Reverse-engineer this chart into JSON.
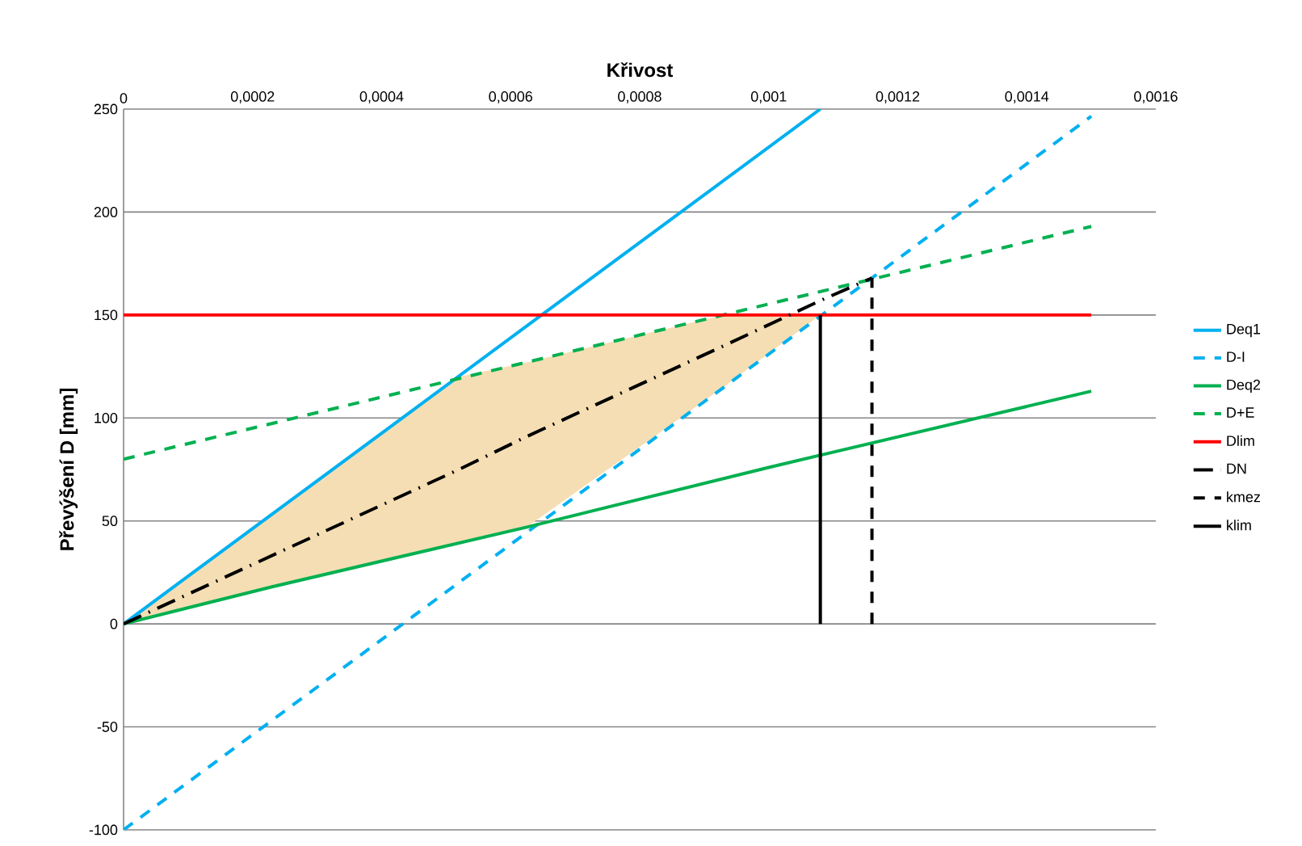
{
  "chart_data": {
    "type": "line",
    "xlabel": "Křivost",
    "ylabel": "Převýšení D [mm]",
    "xlim": [
      0,
      0.0016
    ],
    "ylim": [
      -100,
      250
    ],
    "xticks": [
      0,
      {
        "value": 0.0002,
        "label": "0,0002"
      },
      {
        "value": 0.0004,
        "label": "0,0004"
      },
      {
        "value": 0.0006,
        "label": "0,0006"
      },
      {
        "value": 0.0008,
        "label": "0,0008"
      },
      {
        "value": 0.001,
        "label": "0,001"
      },
      {
        "value": 0.0012,
        "label": "0,0012"
      },
      {
        "value": 0.0014,
        "label": "0,0014"
      },
      {
        "value": 0.0016,
        "label": "0,0016"
      }
    ],
    "yticks": [
      -100,
      -50,
      0,
      50,
      100,
      150,
      200,
      250
    ],
    "grid": "y",
    "legend": "right",
    "marker": "none",
    "series": [
      {
        "name": "Deq1",
        "color": "#00b0f0",
        "line_style": "solid",
        "x": [
          0,
          0.00108
        ],
        "values": [
          0,
          250
        ]
      },
      {
        "name": "D-I",
        "color": "#00b0f0",
        "line_style": "dashed",
        "x": [
          0,
          0.0015
        ],
        "values": [
          -100,
          246.5
        ]
      },
      {
        "name": "Deq2",
        "color": "#00b050",
        "line_style": "solid",
        "x": [
          0,
          0.00023,
          0.000625,
          0.001,
          0.0015
        ],
        "values": [
          0,
          18,
          47,
          76,
          113
        ]
      },
      {
        "name": "D+E",
        "color": "#00b050",
        "line_style": "dashed",
        "x": [
          0,
          0.0015
        ],
        "values": [
          80,
          193
        ]
      },
      {
        "name": "Dlim",
        "color": "#ff0000",
        "line_style": "solid",
        "x": [
          0,
          0.0015
        ],
        "values": [
          150,
          150
        ]
      },
      {
        "name": "DN",
        "color": "#000000",
        "line_style": "dashdot",
        "x": [
          0,
          0.00052,
          0.000625,
          0.00093,
          0.00108,
          0.00116
        ],
        "values": [
          0,
          75,
          91,
          135,
          157,
          168
        ],
        "lower": [
          0,
          40,
          47,
          115,
          150,
          null
        ],
        "upper": [
          0,
          120,
          127,
          150,
          150,
          null
        ]
      },
      {
        "name": "kmez",
        "color": "#000000",
        "line_style": "dashed",
        "x": [
          0.00116,
          0.00116
        ],
        "values": [
          0,
          168
        ]
      },
      {
        "name": "klim",
        "color": "#000000",
        "line_style": "solid",
        "x": [
          0.00108,
          0.00108
        ],
        "values": [
          0,
          150
        ]
      }
    ]
  }
}
